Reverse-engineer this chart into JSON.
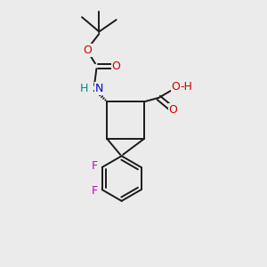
{
  "bg_color": "#ebebeb",
  "bond_color": "#1a1a1a",
  "bond_width": 1.4,
  "fig_size": [
    3.0,
    3.0
  ],
  "dpi": 100,
  "colors": {
    "N": "#0000cc",
    "O": "#cc0000",
    "F": "#cc00cc",
    "H_N": "#008888",
    "bond": "#1a1a1a"
  },
  "scale": 10
}
